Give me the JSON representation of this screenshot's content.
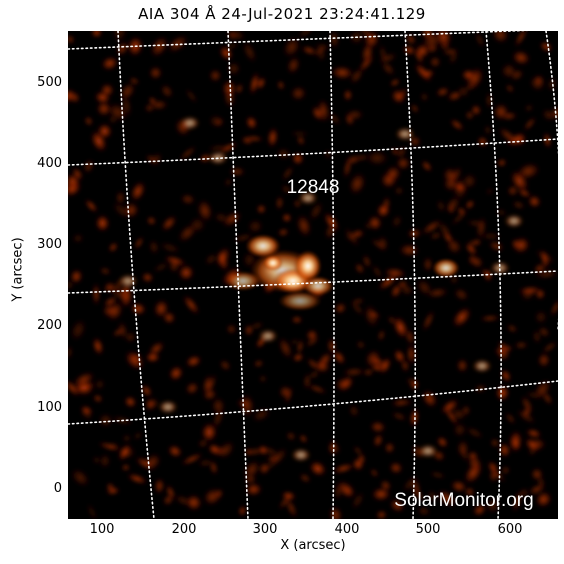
{
  "title": "AIA 304 Å 24-Jul-2021 23:24:41.129",
  "xlabel": "X (arcsec)",
  "ylabel": "Y (arcsec)",
  "x_ticks": [
    "100",
    "200",
    "300",
    "400",
    "500",
    "600"
  ],
  "y_ticks": [
    "0",
    "100",
    "200",
    "300",
    "400",
    "500"
  ],
  "region_label": "12848",
  "watermark": "SolarMonitor.org",
  "colors": {
    "background": "#000000",
    "emission_dark": "#3a0600",
    "emission_mid": "#b53200",
    "emission_bright": "#ffb060",
    "emission_core": "#ffffff",
    "grid": "#ffffff"
  }
}
